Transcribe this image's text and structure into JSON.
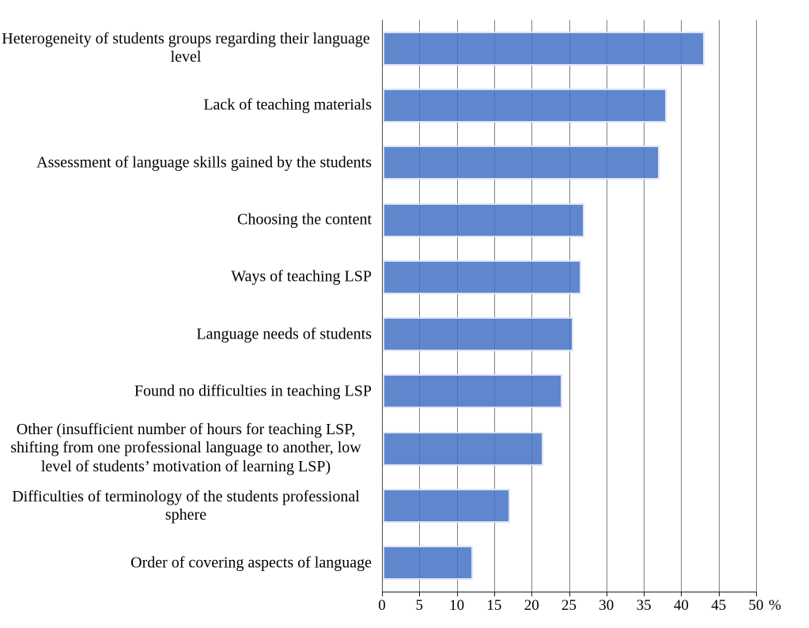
{
  "chart_data": {
    "type": "bar",
    "orientation": "horizontal",
    "title": "",
    "categories": [
      "Heterogeneity of students groups regarding their language level",
      "Lack of teaching materials",
      "Assessment of language skills gained by the students",
      "Choosing the content",
      "Ways of teaching LSP",
      "Language needs of students",
      "Found no difficulties in teaching LSP",
      "Other (insufficient number of hours for teaching LSP, shifting from one professional language to another, low level of students’ motivation of learning  LSP)",
      "Difficulties of terminology of the students professional sphere",
      "Order of covering aspects of language"
    ],
    "values": [
      43,
      38,
      37,
      27,
      26.5,
      25.5,
      24,
      21.5,
      17,
      12
    ],
    "xlabel": "%",
    "xlim": [
      0,
      50
    ],
    "x_ticks": [
      0,
      5,
      10,
      15,
      20,
      25,
      30,
      35,
      40,
      45,
      50
    ],
    "grid": true,
    "legend_position": "none",
    "colors": {
      "bar_fill": "#4472C4",
      "bar_fill_opacity": 0.85,
      "bar_border": "#E1E8F6",
      "gridline": "#808080",
      "zero_line": "#4D4D4D",
      "axis_line": "#1A1A1A",
      "text": "#000000",
      "background": "#FFFFFF"
    }
  }
}
